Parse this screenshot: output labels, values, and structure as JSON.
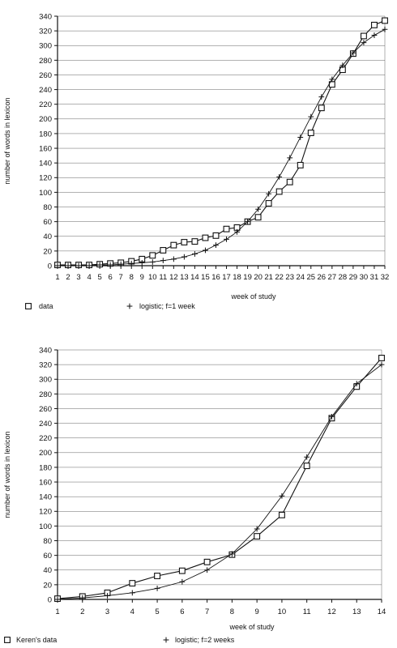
{
  "chart_data": [
    {
      "type": "line",
      "title": "",
      "xlabel": "week of study",
      "ylabel": "number of words in lexicon",
      "x": [
        1,
        2,
        3,
        4,
        5,
        6,
        7,
        8,
        9,
        10,
        11,
        12,
        13,
        14,
        15,
        16,
        17,
        18,
        19,
        20,
        21,
        22,
        23,
        24,
        25,
        26,
        27,
        28,
        29,
        30,
        31,
        32
      ],
      "xticks": [
        "1",
        "2",
        "3",
        "4",
        "5",
        "6",
        "7",
        "8",
        "9",
        "10",
        "11",
        "12",
        "13",
        "14",
        "15",
        "16",
        "17",
        "18",
        "19",
        "20",
        "21",
        "22",
        "23",
        "24",
        "25",
        "26",
        "27",
        "28",
        "29",
        "30",
        "31",
        "32"
      ],
      "ylim": [
        0,
        340
      ],
      "yticks": [
        "0",
        "20",
        "40",
        "60",
        "80",
        "100",
        "120",
        "140",
        "160",
        "180",
        "200",
        "220",
        "240",
        "260",
        "280",
        "300",
        "320",
        "340"
      ],
      "grid": "horizontal",
      "legend_position": "bottom",
      "series": [
        {
          "name": "data",
          "marker": "square",
          "values": [
            1,
            1,
            1,
            1,
            2,
            3,
            4,
            6,
            9,
            14,
            21,
            28,
            32,
            33,
            38,
            41,
            50,
            52,
            60,
            66,
            85,
            101,
            114,
            137,
            181,
            215,
            247,
            267,
            289,
            313,
            328,
            334
          ]
        },
        {
          "name": "logistic; f=1 week",
          "marker": "plus",
          "values": [
            0,
            0,
            0,
            0,
            1,
            1,
            2,
            3,
            4,
            5,
            7,
            9,
            12,
            16,
            21,
            28,
            36,
            46,
            60,
            77,
            98,
            121,
            147,
            175,
            203,
            230,
            254,
            273,
            290,
            304,
            314,
            322
          ]
        }
      ]
    },
    {
      "type": "line",
      "title": "",
      "xlabel": "week of study",
      "ylabel": "number of words in lexicon",
      "x": [
        1,
        2,
        3,
        4,
        5,
        6,
        7,
        8,
        9,
        10,
        11,
        12,
        13,
        14
      ],
      "xticks": [
        "1",
        "2",
        "3",
        "4",
        "5",
        "6",
        "7",
        "8",
        "9",
        "10",
        "11",
        "12",
        "13",
        "14"
      ],
      "ylim": [
        0,
        340
      ],
      "yticks": [
        "0",
        "20",
        "40",
        "60",
        "80",
        "100",
        "120",
        "140",
        "160",
        "180",
        "200",
        "220",
        "240",
        "260",
        "280",
        "300",
        "320",
        "340"
      ],
      "grid": "horizontal",
      "legend_position": "bottom",
      "series": [
        {
          "name": "Keren's data",
          "marker": "square",
          "values": [
            1,
            4,
            9,
            22,
            32,
            39,
            51,
            61,
            86,
            115,
            182,
            247,
            290,
            329
          ]
        },
        {
          "name": "logistic; f=2 weeks",
          "marker": "plus",
          "values": [
            0,
            2,
            5,
            9,
            15,
            24,
            40,
            62,
            96,
            141,
            194,
            249,
            294,
            320
          ]
        }
      ]
    }
  ]
}
